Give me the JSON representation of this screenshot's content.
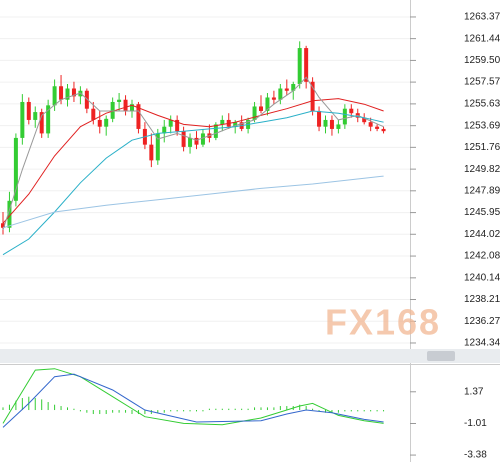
{
  "chart_data": [
    {
      "type": "candlestick",
      "watermark": "FX168",
      "up_color": "#33cc33",
      "down_color": "#ee2222",
      "open": [
        1245.0,
        1244.6,
        1247.0,
        1252.6,
        1255.8,
        1254.2,
        1254.9,
        1253.0,
        1255.5,
        1257.2,
        1256.0,
        1257.0,
        1256.3,
        1256.8,
        1255.2,
        1254.2,
        1253.6,
        1254.3,
        1255.8,
        1256.0,
        1255.0,
        1255.6,
        1253.4,
        1252.0,
        1250.6,
        1253.0,
        1253.6,
        1254.2,
        1253.2,
        1251.8,
        1252.6,
        1252.0,
        1253.0,
        1252.6,
        1253.8,
        1254.2,
        1253.6,
        1254.0,
        1253.4,
        1254.2,
        1255.4,
        1255.0,
        1256.2,
        1256.0,
        1257.0,
        1256.8,
        1257.4,
        1260.6,
        1257.6,
        1255.0,
        1253.6,
        1254.2,
        1253.4,
        1253.8,
        1255.2,
        1254.8,
        1254.4,
        1254.0,
        1253.6,
        1253.4
      ],
      "high": [
        1246.0,
        1247.8,
        1253.0,
        1256.5,
        1256.2,
        1255.4,
        1255.2,
        1256.0,
        1257.8,
        1258.2,
        1257.4,
        1257.6,
        1257.2,
        1257.0,
        1255.8,
        1255.0,
        1254.6,
        1256.2,
        1256.6,
        1256.4,
        1256.0,
        1255.8,
        1254.0,
        1253.0,
        1253.4,
        1254.2,
        1254.6,
        1254.6,
        1253.6,
        1253.0,
        1253.2,
        1253.4,
        1253.8,
        1254.0,
        1254.6,
        1254.8,
        1254.2,
        1254.6,
        1254.4,
        1255.8,
        1256.4,
        1256.6,
        1256.8,
        1257.4,
        1257.8,
        1257.6,
        1261.2,
        1260.8,
        1258.0,
        1255.4,
        1254.6,
        1254.6,
        1254.2,
        1255.6,
        1255.6,
        1255.2,
        1254.8,
        1254.4,
        1253.8,
        1253.6
      ],
      "low": [
        1244.0,
        1244.2,
        1246.5,
        1252.0,
        1253.8,
        1253.5,
        1252.6,
        1252.6,
        1255.0,
        1255.6,
        1255.4,
        1255.8,
        1255.6,
        1254.8,
        1253.8,
        1253.0,
        1252.8,
        1254.0,
        1255.0,
        1254.6,
        1254.4,
        1253.0,
        1251.6,
        1250.0,
        1250.2,
        1252.2,
        1253.0,
        1252.8,
        1251.4,
        1251.2,
        1251.6,
        1251.8,
        1252.2,
        1252.4,
        1253.2,
        1253.4,
        1253.0,
        1253.2,
        1253.0,
        1254.0,
        1254.8,
        1254.6,
        1255.6,
        1255.6,
        1256.4,
        1256.0,
        1257.0,
        1257.0,
        1254.6,
        1253.2,
        1253.0,
        1252.8,
        1253.0,
        1253.4,
        1254.4,
        1254.0,
        1253.8,
        1253.2,
        1253.2,
        1253.0
      ],
      "close": [
        1244.6,
        1247.0,
        1252.6,
        1255.8,
        1254.2,
        1254.9,
        1253.0,
        1255.5,
        1257.2,
        1256.0,
        1257.0,
        1256.3,
        1256.8,
        1255.2,
        1254.2,
        1253.6,
        1254.3,
        1255.8,
        1256.0,
        1255.0,
        1255.6,
        1253.4,
        1252.0,
        1250.6,
        1253.0,
        1253.6,
        1254.2,
        1253.2,
        1251.8,
        1252.6,
        1252.0,
        1253.0,
        1252.6,
        1253.8,
        1254.2,
        1253.6,
        1254.0,
        1253.4,
        1254.2,
        1255.4,
        1255.0,
        1256.2,
        1256.0,
        1257.0,
        1256.8,
        1257.4,
        1260.6,
        1257.6,
        1255.0,
        1253.6,
        1254.2,
        1253.4,
        1253.8,
        1255.2,
        1254.8,
        1254.4,
        1254.0,
        1253.6,
        1253.4,
        1253.2
      ],
      "lines": [
        {
          "color": "#e02020",
          "x": [
            0,
            4,
            8,
            12,
            16,
            20,
            24,
            28,
            32,
            36,
            40,
            44,
            48,
            52,
            56,
            59
          ],
          "values": [
            1245.0,
            1247.6,
            1251.0,
            1253.6,
            1254.8,
            1255.5,
            1254.6,
            1253.8,
            1253.6,
            1254.0,
            1254.6,
            1255.2,
            1255.9,
            1256.1,
            1255.6,
            1255.0
          ]
        },
        {
          "color": "#999999",
          "x": [
            0,
            3,
            6,
            9,
            12,
            15,
            18,
            21,
            24,
            27,
            30,
            33,
            36,
            39,
            42,
            45,
            47,
            49,
            52,
            55,
            59
          ],
          "values": [
            1244.4,
            1249.8,
            1254.6,
            1256.0,
            1256.6,
            1255.0,
            1255.0,
            1255.0,
            1252.5,
            1253.0,
            1252.4,
            1253.0,
            1253.7,
            1254.2,
            1255.6,
            1256.8,
            1258.0,
            1256.2,
            1254.2,
            1254.6,
            1253.6
          ]
        },
        {
          "color": "#2ab0c8",
          "x": [
            0,
            4,
            8,
            12,
            16,
            20,
            24,
            28,
            32,
            36,
            40,
            44,
            48,
            52,
            56,
            59
          ],
          "values": [
            1242.2,
            1243.6,
            1246.0,
            1248.6,
            1250.8,
            1252.4,
            1253.0,
            1253.2,
            1253.4,
            1253.6,
            1254.0,
            1254.4,
            1255.0,
            1254.8,
            1254.4,
            1254.0
          ]
        },
        {
          "color": "#9cc4e4",
          "x": [
            0,
            8,
            16,
            24,
            32,
            40,
            48,
            56,
            59
          ],
          "values": [
            1244.6,
            1246.0,
            1246.6,
            1247.1,
            1247.6,
            1248.1,
            1248.5,
            1249.0,
            1249.2
          ]
        }
      ],
      "ylim": [
        1234.16,
        1264.88
      ],
      "yticks": [
        1263.37,
        1261.44,
        {
          "value": 1259.5,
          "label": "1259.50"
        },
        1257.57,
        1255.63,
        1253.69,
        1251.76,
        1249.82,
        1247.89,
        1245.95,
        1244.02,
        1242.08,
        1240.14,
        1238.21,
        1236.27,
        1234.34
      ],
      "grid": true
    },
    {
      "type": "macd",
      "bar_color": "#33cc33",
      "bars": [
        0.2,
        0.4,
        0.7,
        0.9,
        1.0,
        0.9,
        0.8,
        0.6,
        0.4,
        0.3,
        0.2,
        0.1,
        -0.1,
        -0.2,
        -0.3,
        -0.3,
        -0.3,
        -0.2,
        -0.2,
        -0.2,
        -0.3,
        -0.3,
        -0.3,
        -0.3,
        -0.2,
        -0.2,
        -0.1,
        -0.1,
        -0.1,
        -0.1,
        -0.1,
        -0.1,
        0.1,
        0.1,
        0.1,
        0.1,
        0.1,
        0.1,
        0.1,
        0.2,
        0.2,
        0.2,
        0.2,
        0.3,
        0.3,
        0.3,
        0.4,
        0.3,
        0.1,
        -0.1,
        -0.2,
        -0.2,
        -0.2,
        -0.1,
        -0.1,
        -0.1,
        -0.1,
        -0.1,
        -0.1,
        -0.1
      ],
      "lines": [
        {
          "color": "#33cc33",
          "x": [
            0,
            2,
            5,
            8,
            12,
            17,
            22,
            28,
            34,
            40,
            44,
            46,
            48,
            52,
            56,
            59
          ],
          "values": [
            -1.0,
            0.6,
            3.0,
            3.1,
            2.5,
            1.0,
            -0.5,
            -1.0,
            -1.1,
            -0.6,
            0.0,
            0.3,
            0.5,
            -0.4,
            -0.8,
            -1.0
          ]
        },
        {
          "color": "#3366cc",
          "x": [
            0,
            4,
            8,
            11,
            17,
            22,
            30,
            40,
            44,
            47,
            51,
            56,
            59
          ],
          "values": [
            -1.3,
            0.5,
            2.5,
            2.7,
            1.5,
            0.0,
            -0.9,
            -0.8,
            -0.3,
            0.0,
            -0.2,
            -0.7,
            -0.9
          ]
        }
      ],
      "ylim": [
        -3.9,
        3.38
      ],
      "yticks": [
        1.37,
        -1.01,
        -3.38
      ]
    }
  ]
}
